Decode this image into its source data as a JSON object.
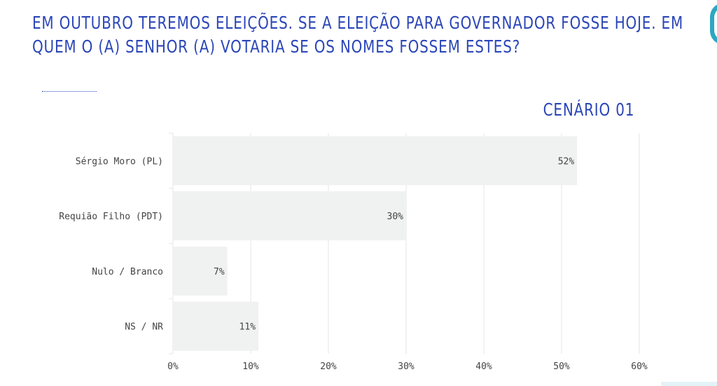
{
  "title_lines": [
    "EM OUTUBRO TEREMOS ELEIÇÕES. SE A ELEIÇÃO PARA GOVERNADOR  FOSSE HOJE. EM",
    "QUEM O (A) SENHOR (A) VOTARIA SE OS NOMES FOSSEM ESTES?"
  ],
  "scenario": "CENÁRIO 01",
  "colors": {
    "title": "#2b46b8",
    "bar": "#f0f1f1",
    "grid": "#e6e6e6",
    "text": "#444444",
    "accent": "#2ba7c2"
  },
  "chart_data": {
    "type": "bar",
    "orientation": "horizontal",
    "title": "",
    "xlabel": "",
    "ylabel": "",
    "categories": [
      "Sérgio Moro (PL)",
      "Requião Filho (PDT)",
      "Nulo / Branco",
      "NS / NR"
    ],
    "values": [
      52,
      30,
      7,
      11
    ],
    "value_labels": [
      "52%",
      "30%",
      "7%",
      "11%"
    ],
    "xlim": [
      0,
      60
    ],
    "ticks": [
      0,
      10,
      20,
      30,
      40,
      50,
      60
    ],
    "tick_labels": [
      "0%",
      "10%",
      "20%",
      "30%",
      "40%",
      "50%",
      "60%"
    ],
    "grid": true,
    "legend": "none"
  }
}
